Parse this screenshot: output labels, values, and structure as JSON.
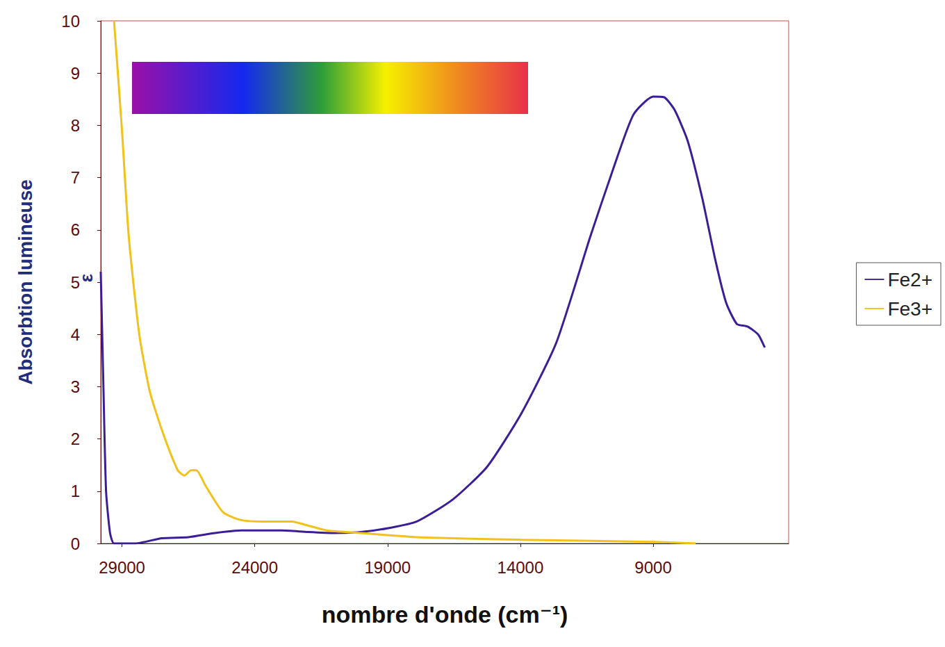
{
  "chart_data": {
    "type": "line",
    "xlabel": "nombre d'onde (cm⁻¹)",
    "ylabel": "Absorbtion lumineuse",
    "annotations": [
      "ε"
    ],
    "xlim": [
      29800,
      3900
    ],
    "xticks": [
      29000,
      24000,
      19000,
      14000,
      9000
    ],
    "ylim": [
      0,
      10
    ],
    "yticks": [
      0,
      1,
      2,
      3,
      4,
      5,
      6,
      7,
      8,
      9,
      10
    ],
    "grid": false,
    "legend": "right",
    "series": [
      {
        "name": "Fe2+",
        "color": "#3b1e96",
        "x": [
          29800,
          29700,
          29600,
          29450,
          29300,
          28500,
          27500,
          26500,
          25500,
          24500,
          23000,
          22000,
          21000,
          20000,
          18900,
          17900,
          16550,
          15250,
          13950,
          12650,
          11350,
          10550,
          9750,
          9000,
          8600,
          8200,
          7700,
          7150,
          6650,
          6250,
          5850,
          5450,
          5050,
          4800
        ],
        "values": [
          5.2,
          3.0,
          1.0,
          0.2,
          0.0,
          0.0,
          0.1,
          0.12,
          0.2,
          0.25,
          0.25,
          0.22,
          0.2,
          0.22,
          0.3,
          0.42,
          0.84,
          1.47,
          2.5,
          3.84,
          5.9,
          7.1,
          8.2,
          8.55,
          8.54,
          8.3,
          7.7,
          6.6,
          5.4,
          4.6,
          4.2,
          4.15,
          4.0,
          3.75
        ]
      },
      {
        "name": "Fe3+",
        "color": "#f2c21b",
        "x": [
          29300,
          29000,
          28750,
          28350,
          27950,
          27450,
          26900,
          26650,
          26400,
          26200,
          25850,
          25200,
          24550,
          23650,
          22600,
          22050,
          21300,
          20000,
          17900,
          13950,
          11350,
          9000,
          7400
        ],
        "values": [
          10,
          7.9,
          5.9,
          4.0,
          2.9,
          2.1,
          1.4,
          1.3,
          1.4,
          1.4,
          1.1,
          0.6,
          0.45,
          0.42,
          0.42,
          0.35,
          0.25,
          0.2,
          0.12,
          0.07,
          0.05,
          0.03,
          0.0
        ]
      }
    ]
  }
}
